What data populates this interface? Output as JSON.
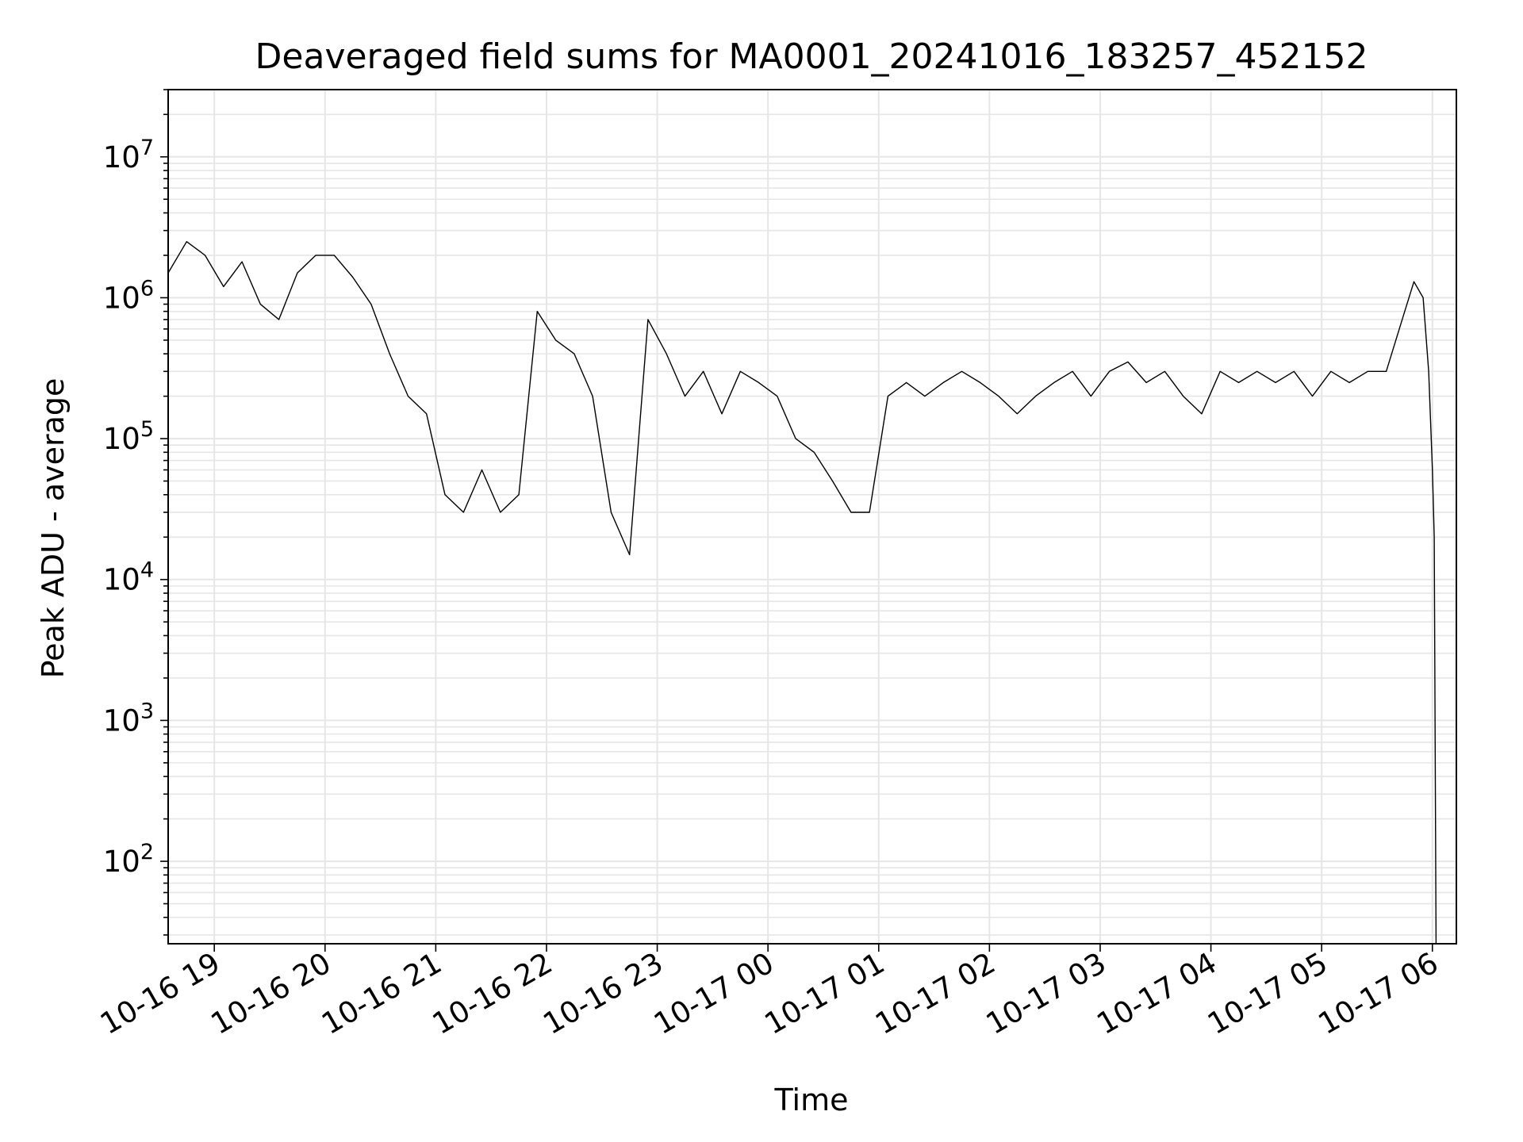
{
  "chart_data": {
    "type": "line",
    "title": "Deaveraged field sums for MA0001_20241016_183257_452152",
    "xlabel": "Time",
    "ylabel": "Peak ADU - average",
    "yscale": "log",
    "ylim": [
      26,
      30000000
    ],
    "xlim": [
      "10-16 18:35",
      "10-17 06:13"
    ],
    "grid": true,
    "line_color": "#000000",
    "grid_color": "#e6e6e6",
    "xticks": [
      {
        "t": "10-16 19:00",
        "label": "10-16 19"
      },
      {
        "t": "10-16 20:00",
        "label": "10-16 20"
      },
      {
        "t": "10-16 21:00",
        "label": "10-16 21"
      },
      {
        "t": "10-16 22:00",
        "label": "10-16 22"
      },
      {
        "t": "10-16 23:00",
        "label": "10-16 23"
      },
      {
        "t": "10-17 00:00",
        "label": "10-17 00"
      },
      {
        "t": "10-17 01:00",
        "label": "10-17 01"
      },
      {
        "t": "10-17 02:00",
        "label": "10-17 02"
      },
      {
        "t": "10-17 03:00",
        "label": "10-17 03"
      },
      {
        "t": "10-17 04:00",
        "label": "10-17 04"
      },
      {
        "t": "10-17 05:00",
        "label": "10-17 05"
      },
      {
        "t": "10-17 06:00",
        "label": "10-17 06"
      }
    ],
    "yticks": [
      {
        "value": 100,
        "base": "10",
        "exp": "2"
      },
      {
        "value": 1000,
        "base": "10",
        "exp": "3"
      },
      {
        "value": 10000,
        "base": "10",
        "exp": "4"
      },
      {
        "value": 100000,
        "base": "10",
        "exp": "5"
      },
      {
        "value": 1000000,
        "base": "10",
        "exp": "6"
      },
      {
        "value": 10000000,
        "base": "10",
        "exp": "7"
      }
    ],
    "series": [
      {
        "x": [
          "10-16 18:35",
          "10-16 18:45",
          "10-16 18:55",
          "10-16 19:05",
          "10-16 19:15",
          "10-16 19:25",
          "10-16 19:35",
          "10-16 19:45",
          "10-16 19:55",
          "10-16 20:05",
          "10-16 20:15",
          "10-16 20:25",
          "10-16 20:35",
          "10-16 20:45",
          "10-16 20:55",
          "10-16 21:05",
          "10-16 21:15",
          "10-16 21:25",
          "10-16 21:35",
          "10-16 21:45",
          "10-16 21:55",
          "10-16 22:05",
          "10-16 22:15",
          "10-16 22:25",
          "10-16 22:35",
          "10-16 22:45",
          "10-16 22:55",
          "10-16 23:05",
          "10-16 23:15",
          "10-16 23:25",
          "10-16 23:35",
          "10-16 23:45",
          "10-16 23:55",
          "10-17 00:05",
          "10-17 00:15",
          "10-17 00:25",
          "10-17 00:35",
          "10-17 00:45",
          "10-17 00:55",
          "10-17 01:05",
          "10-17 01:15",
          "10-17 01:25",
          "10-17 01:35",
          "10-17 01:45",
          "10-17 01:55",
          "10-17 02:05",
          "10-17 02:15",
          "10-17 02:25",
          "10-17 02:35",
          "10-17 02:45",
          "10-17 02:55",
          "10-17 03:05",
          "10-17 03:15",
          "10-17 03:25",
          "10-17 03:35",
          "10-17 03:45",
          "10-17 03:55",
          "10-17 04:05",
          "10-17 04:15",
          "10-17 04:25",
          "10-17 04:35",
          "10-17 04:45",
          "10-17 04:55",
          "10-17 05:05",
          "10-17 05:15",
          "10-17 05:25",
          "10-17 05:35",
          "10-17 05:45",
          "10-17 05:50",
          "10-17 05:55",
          "10-17 05:58",
          "10-17 06:00",
          "10-17 06:01",
          "10-17 06:02"
        ],
        "y": [
          1500000,
          2500000,
          2000000,
          1200000,
          1800000,
          900000,
          700000,
          1500000,
          2000000,
          2000000,
          1400000,
          900000,
          400000,
          200000,
          150000,
          40000,
          30000,
          60000,
          30000,
          40000,
          800000,
          500000,
          400000,
          200000,
          30000,
          15000,
          700000,
          400000,
          200000,
          300000,
          150000,
          300000,
          250000,
          200000,
          100000,
          80000,
          50000,
          30000,
          30000,
          200000,
          250000,
          200000,
          250000,
          300000,
          250000,
          200000,
          150000,
          200000,
          250000,
          300000,
          200000,
          300000,
          350000,
          250000,
          300000,
          200000,
          150000,
          300000,
          250000,
          300000,
          250000,
          300000,
          200000,
          300000,
          250000,
          300000,
          300000,
          800000,
          1300000,
          1000000,
          300000,
          60000,
          20000,
          26
        ]
      }
    ]
  }
}
